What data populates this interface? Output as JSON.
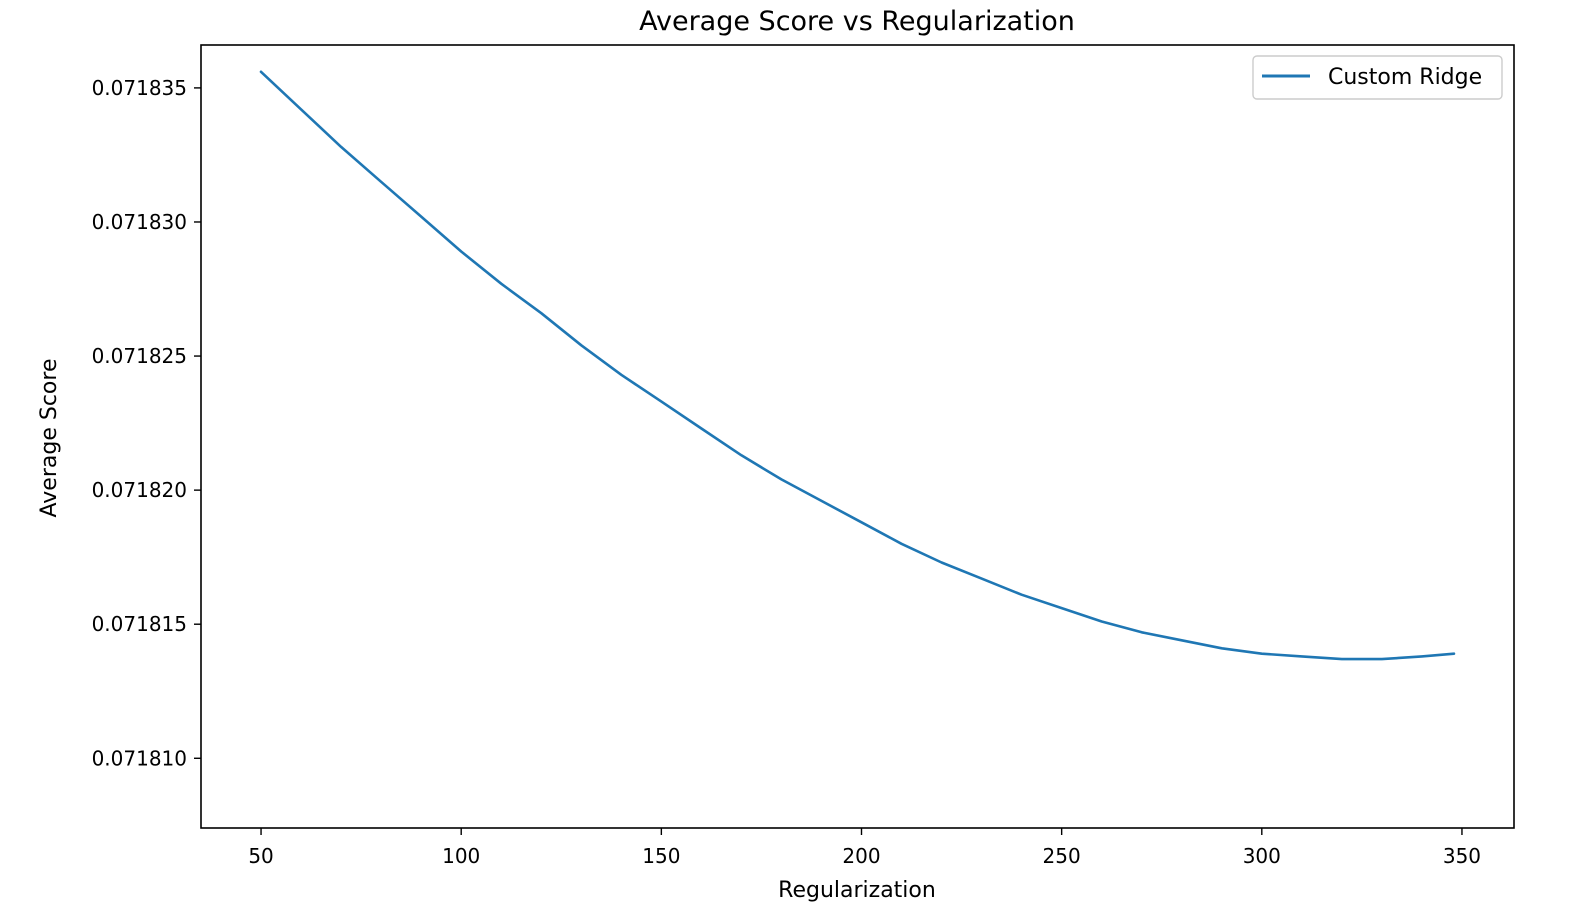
{
  "colors": {
    "line": "#1f77b4",
    "axis": "#000000",
    "legend_border": "#cccccc"
  },
  "chart_data": {
    "type": "line",
    "title": "Average Score vs Regularization",
    "xlabel": "Regularization",
    "ylabel": "Average Score",
    "xlim": [
      35,
      363
    ],
    "ylim": [
      0.0718074,
      0.0718366
    ],
    "xticks": [
      50,
      100,
      150,
      200,
      250,
      300,
      350
    ],
    "xtick_labels": [
      "50",
      "100",
      "150",
      "200",
      "250",
      "300",
      "350"
    ],
    "yticks": [
      0.07181,
      0.071815,
      0.07182,
      0.071825,
      0.07183,
      0.071835
    ],
    "ytick_labels": [
      "0.071810",
      "0.071815",
      "0.071820",
      "0.071825",
      "0.071830",
      "0.071835"
    ],
    "grid": false,
    "legend_position": "top-right",
    "series": [
      {
        "name": "Custom Ridge",
        "color": "#1f77b4",
        "x": [
          50,
          60,
          70,
          80,
          90,
          100,
          110,
          120,
          130,
          140,
          150,
          160,
          170,
          180,
          190,
          200,
          210,
          220,
          230,
          240,
          250,
          260,
          270,
          280,
          290,
          300,
          310,
          320,
          330,
          340,
          348
        ],
        "y": [
          0.0718356,
          0.0718342,
          0.0718328,
          0.0718315,
          0.0718302,
          0.0718289,
          0.0718277,
          0.0718266,
          0.0718254,
          0.0718243,
          0.0718233,
          0.0718223,
          0.0718213,
          0.0718204,
          0.0718196,
          0.0718188,
          0.071818,
          0.0718173,
          0.0718167,
          0.0718161,
          0.0718156,
          0.0718151,
          0.0718147,
          0.0718144,
          0.0718141,
          0.0718139,
          0.0718138,
          0.0718137,
          0.0718137,
          0.0718138,
          0.0718139
        ]
      }
    ]
  }
}
